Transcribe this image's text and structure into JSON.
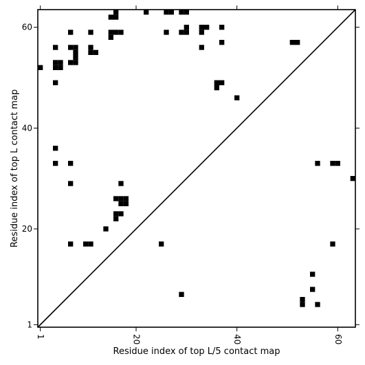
{
  "chart_data": {
    "type": "heatmap",
    "title": "",
    "xlabel": "Residue index of top L/5 contact map",
    "ylabel": "Residue index of top L contact map",
    "xlim": [
      0.5,
      63.5
    ],
    "ylim": [
      0.5,
      63.5
    ],
    "xticks": [
      1,
      20,
      40,
      60
    ],
    "yticks": [
      1,
      20,
      40,
      60
    ],
    "xtick_labels": [
      "1",
      "20",
      "40",
      "60"
    ],
    "ytick_labels": [
      "1",
      "20",
      "40",
      "60"
    ],
    "diagonal": true,
    "grid": false,
    "cell_color": "#000000",
    "line_color": "#000000",
    "cells": [
      [
        1,
        52
      ],
      [
        4,
        56
      ],
      [
        4,
        53
      ],
      [
        4,
        52
      ],
      [
        5,
        53
      ],
      [
        5,
        52
      ],
      [
        4,
        49
      ],
      [
        7,
        59
      ],
      [
        7,
        56
      ],
      [
        7,
        53
      ],
      [
        8,
        56
      ],
      [
        8,
        55
      ],
      [
        8,
        54
      ],
      [
        8,
        53
      ],
      [
        11,
        59
      ],
      [
        11,
        56
      ],
      [
        11,
        55
      ],
      [
        12,
        55
      ],
      [
        15,
        62
      ],
      [
        16,
        62
      ],
      [
        16,
        63
      ],
      [
        15,
        59
      ],
      [
        16,
        59
      ],
      [
        17,
        59
      ],
      [
        15,
        58
      ],
      [
        22,
        63
      ],
      [
        26,
        63
      ],
      [
        27,
        63
      ],
      [
        26,
        59
      ],
      [
        29,
        63
      ],
      [
        30,
        63
      ],
      [
        29,
        59
      ],
      [
        30,
        59
      ],
      [
        30,
        60
      ],
      [
        33,
        60
      ],
      [
        34,
        60
      ],
      [
        33,
        59
      ],
      [
        33,
        56
      ],
      [
        37,
        60
      ],
      [
        37,
        57
      ],
      [
        36,
        49
      ],
      [
        37,
        49
      ],
      [
        36,
        48
      ],
      [
        40,
        46
      ],
      [
        51,
        57
      ],
      [
        52,
        57
      ],
      [
        4,
        36
      ],
      [
        4,
        33
      ],
      [
        7,
        33
      ],
      [
        7,
        29
      ],
      [
        17,
        29
      ],
      [
        16,
        26
      ],
      [
        17,
        26
      ],
      [
        18,
        26
      ],
      [
        17,
        25
      ],
      [
        18,
        25
      ],
      [
        16,
        23
      ],
      [
        17,
        23
      ],
      [
        16,
        22
      ],
      [
        14,
        20
      ],
      [
        7,
        17
      ],
      [
        10,
        17
      ],
      [
        11,
        17
      ],
      [
        25,
        17
      ],
      [
        29,
        7
      ],
      [
        56,
        33
      ],
      [
        59,
        33
      ],
      [
        60,
        33
      ],
      [
        63,
        30
      ],
      [
        59,
        17
      ],
      [
        55,
        11
      ],
      [
        55,
        8
      ],
      [
        53,
        6
      ],
      [
        53,
        5
      ],
      [
        56,
        5
      ]
    ]
  }
}
